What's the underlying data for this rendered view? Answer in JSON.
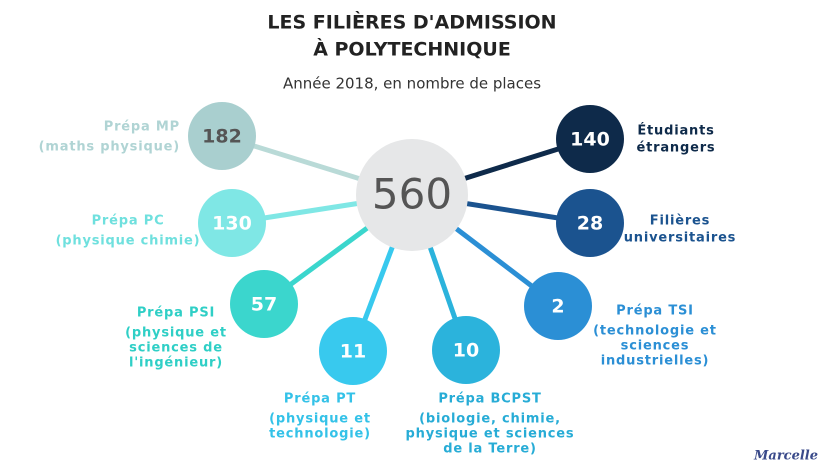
{
  "header": {
    "title_lines": [
      "LES FILIÈRES D'ADMISSION",
      "À POLYTECHNIQUE"
    ],
    "subtitle": "Année 2018, en nombre de places"
  },
  "center": {
    "value": 560
  },
  "nodes": [
    {
      "label": "Prépa MP",
      "details": [
        "(maths physique)"
      ],
      "value": 182
    },
    {
      "label": "Prépa PC",
      "details": [
        "(physique chimie)"
      ],
      "value": 130
    },
    {
      "label": "Prépa PSI",
      "details": [
        "(physique et",
        "sciences de",
        "l'ingénieur)"
      ],
      "value": 57
    },
    {
      "label": "Prépa PT",
      "details": [
        "(physique et",
        "technologie)"
      ],
      "value": 11
    },
    {
      "label": "Prépa BCPST",
      "details": [
        "(biologie, chimie,",
        "physique et sciences",
        "de la Terre)"
      ],
      "value": 10
    },
    {
      "label": "Prépa TSI",
      "details": [
        "(technologie et",
        "sciences",
        "industrielles)"
      ],
      "value": 2
    },
    {
      "label": "Filières",
      "details": [
        "universitaires"
      ],
      "value": 28
    },
    {
      "label": "Étudiants",
      "details": [
        "étrangers"
      ],
      "value": 140
    }
  ],
  "footer": {
    "logo": "Marcelle"
  }
}
